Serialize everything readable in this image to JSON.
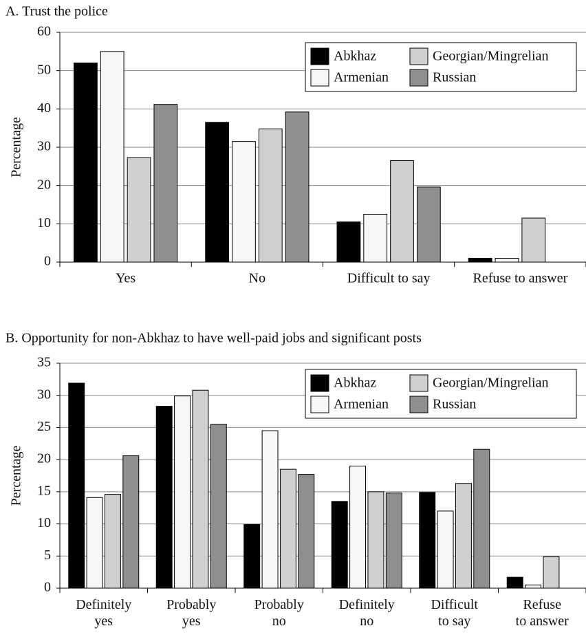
{
  "chart_data": [
    {
      "type": "bar",
      "title": "A. Trust the police",
      "y_label": "Percentage",
      "categories": [
        "Yes",
        "No",
        "Difficult to say",
        "Refuse to answer"
      ],
      "series": [
        {
          "name": "Abkhaz",
          "color": "#000000",
          "values": [
            52,
            36.5,
            10.5,
            1
          ]
        },
        {
          "name": "Armenian",
          "color": "#f7f7f7",
          "values": [
            55,
            31.5,
            12.5,
            1
          ]
        },
        {
          "name": "Georgian/Mingrelian",
          "color": "#d0d0d0",
          "values": [
            27.3,
            34.8,
            26.5,
            11.5
          ]
        },
        {
          "name": "Russian",
          "color": "#8f8f8f",
          "values": [
            41.2,
            39.2,
            19.6,
            0
          ]
        }
      ],
      "ylim": [
        0,
        60
      ],
      "yticks": [
        0,
        10,
        20,
        30,
        40,
        50,
        60
      ],
      "grid": true,
      "legend": "upper right"
    },
    {
      "type": "bar",
      "title": "B. Opportunity for non-Abkhaz to have well-paid jobs and significant posts",
      "y_label": "Percentage",
      "categories": [
        "Definitely\nyes",
        "Probably\nyes",
        "Probably\nno",
        "Definitely\nno",
        "Difficult\nto say",
        "Refuse\nto answer"
      ],
      "series": [
        {
          "name": "Abkhaz",
          "color": "#000000",
          "values": [
            31.9,
            28.3,
            9.9,
            13.5,
            14.9,
            1.7
          ]
        },
        {
          "name": "Armenian",
          "color": "#f7f7f7",
          "values": [
            14.1,
            29.9,
            24.5,
            19.0,
            12.0,
            0.5
          ]
        },
        {
          "name": "Georgian/Mingrelian",
          "color": "#d0d0d0",
          "values": [
            14.6,
            30.8,
            18.5,
            15.0,
            16.3,
            4.9
          ]
        },
        {
          "name": "Russian",
          "color": "#8f8f8f",
          "values": [
            20.6,
            25.5,
            17.7,
            14.8,
            21.6,
            0
          ]
        }
      ],
      "ylim": [
        0,
        35
      ],
      "yticks": [
        0,
        5,
        10,
        15,
        20,
        25,
        30,
        35
      ],
      "grid": true,
      "legend": "upper right"
    }
  ]
}
